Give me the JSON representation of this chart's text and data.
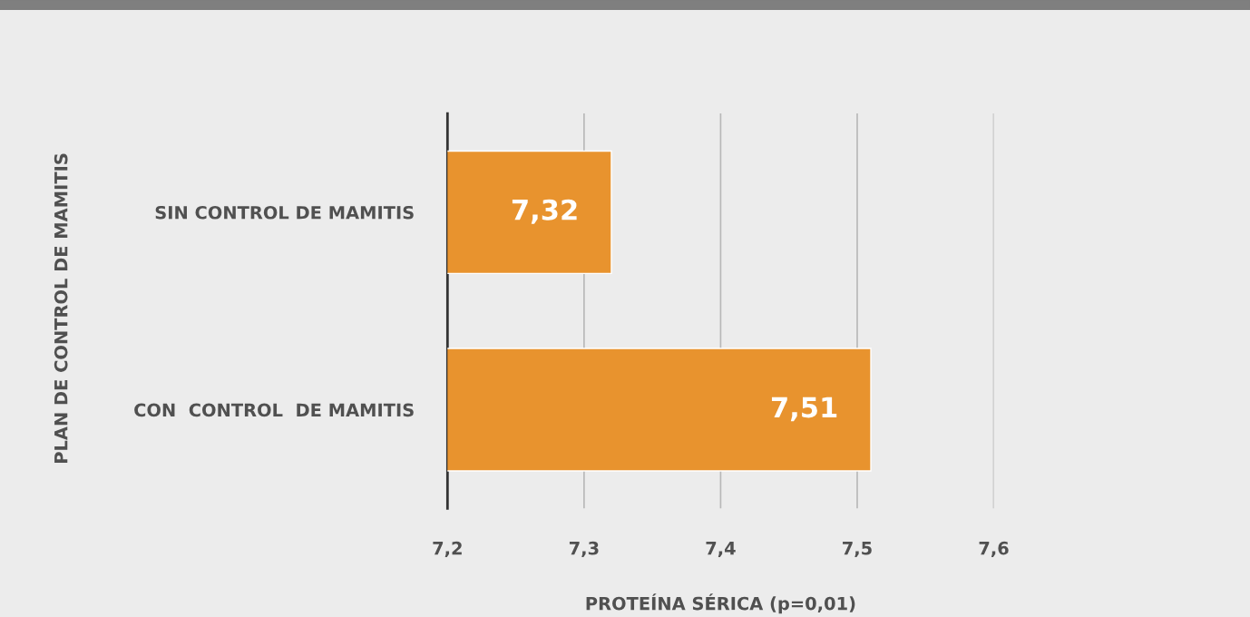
{
  "chart_data": {
    "type": "bar",
    "orientation": "horizontal",
    "categories": [
      "SIN CONTROL DE MAMITIS",
      "CON  CONTROL  DE MAMITIS"
    ],
    "values": [
      7.32,
      7.51
    ],
    "color": "#e8932e",
    "value_labels": [
      "7,32",
      "7,51"
    ],
    "xlabel": "PROTEÍNA SÉRICA (p=0,01)",
    "ylabel": "PLAN DE CONTROL DE MAMITIS",
    "xlim": [
      7.2,
      7.6
    ],
    "xticks": [
      {
        "value": 7.2,
        "label": "7,2"
      },
      {
        "value": 7.3,
        "label": "7,3"
      },
      {
        "value": 7.4,
        "label": "7,4"
      },
      {
        "value": 7.5,
        "label": "7,5"
      },
      {
        "value": 7.6,
        "label": "7,6"
      }
    ],
    "grid": "x",
    "legend": false
  }
}
